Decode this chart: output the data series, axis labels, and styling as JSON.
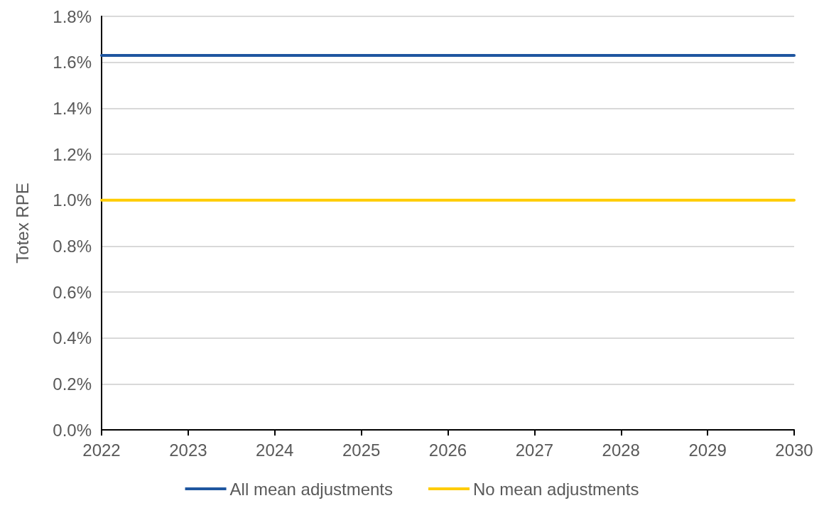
{
  "chart_data": {
    "type": "line",
    "ylabel": "Totex RPE",
    "x": [
      2022,
      2030
    ],
    "series": [
      {
        "name": "All mean adjustments",
        "color": "#1f56a0",
        "values": [
          1.63,
          1.63
        ]
      },
      {
        "name": "No mean adjustments",
        "color": "#ffcc00",
        "values": [
          1.0,
          1.0
        ]
      }
    ],
    "xlim": [
      2022,
      2030
    ],
    "xticks": [
      2022,
      2023,
      2024,
      2025,
      2026,
      2027,
      2028,
      2029,
      2030
    ],
    "ylim": [
      0,
      1.8
    ],
    "yticks": [
      {
        "value": 0,
        "label": "0.0%"
      },
      {
        "value": 0.2,
        "label": "0.2%"
      },
      {
        "value": 0.4,
        "label": "0.4%"
      },
      {
        "value": 0.6,
        "label": "0.6%"
      },
      {
        "value": 0.8,
        "label": "0.8%"
      },
      {
        "value": 1.0,
        "label": "1.0%"
      },
      {
        "value": 1.2,
        "label": "1.2%"
      },
      {
        "value": 1.4,
        "label": "1.4%"
      },
      {
        "value": 1.6,
        "label": "1.6%"
      },
      {
        "value": 1.8,
        "label": "1.8%"
      }
    ],
    "grid": "y",
    "legend": "bottom",
    "marker": "none",
    "line_style": "solid"
  }
}
